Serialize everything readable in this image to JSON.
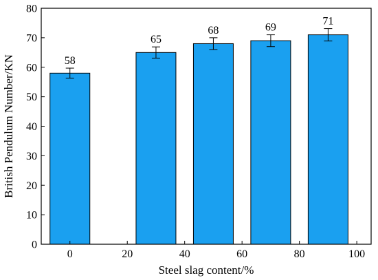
{
  "chart_data": {
    "type": "bar",
    "title": "",
    "xlabel": "Steel slag content/%",
    "ylabel": "British Pendulum Number/KN",
    "categories": [
      "0",
      "20",
      "40",
      "60",
      "80",
      "100"
    ],
    "x_ticks": [
      "0",
      "20",
      "40",
      "60",
      "80",
      "100"
    ],
    "bars": [
      {
        "x": 0,
        "value": 58,
        "error": 1.7
      },
      {
        "x": 30,
        "value": 65,
        "error": 1.9
      },
      {
        "x": 50,
        "value": 68,
        "error": 2.0
      },
      {
        "x": 70,
        "value": 69,
        "error": 2.0
      },
      {
        "x": 90,
        "value": 71,
        "error": 2.1
      }
    ],
    "data_labels": [
      "58",
      "65",
      "68",
      "69",
      "71"
    ],
    "y_ticks": [
      0,
      10,
      20,
      30,
      40,
      50,
      60,
      70,
      80
    ],
    "ylim": [
      0,
      80
    ],
    "xlim": [
      -10,
      105
    ],
    "grid": false,
    "bar_color": "#1aa0f0",
    "bar_edge_color": "#000000"
  }
}
